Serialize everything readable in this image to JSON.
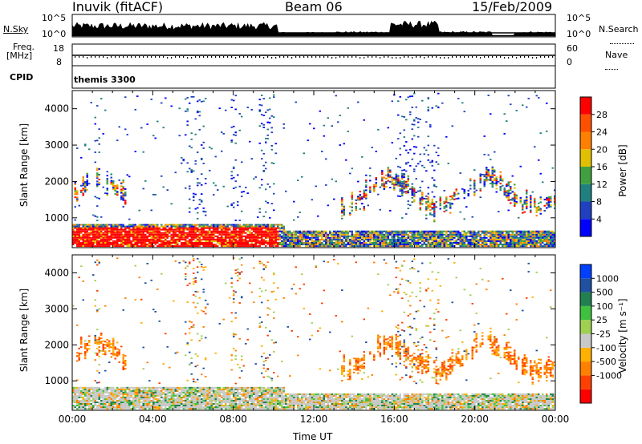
{
  "header": {
    "station": "Inuvik (fitACF)",
    "beam": "Beam 06",
    "date": "15/Feb/2009"
  },
  "panels": {
    "nsky_label": "N.Sky",
    "nsky_ticks": [
      "10^5",
      "10^0"
    ],
    "nsearch_label": "N.Search",
    "nsearch_ticks": [
      "10^5",
      "10^0"
    ],
    "freq_label": "Freq.",
    "freq_unit": "[MHz]",
    "freq_ticks": [
      "18",
      "8"
    ],
    "nave_label": "Nave",
    "nave_ticks": [
      "60",
      "0"
    ],
    "cpid_label": "CPID",
    "cpid_value": "themis 3300"
  },
  "colors": {
    "power_scale": [
      "#0000ff",
      "#2040c0",
      "#208080",
      "#40a040",
      "#e0c000",
      "#ff8000",
      "#ff5000",
      "#ff0000"
    ],
    "velocity_scale": [
      "#ff0000",
      "#ff4000",
      "#ff8000",
      "#ffb000",
      "#c8c8c8",
      "#a0d050",
      "#40c040",
      "#208050",
      "#2050a0",
      "#0040ff"
    ]
  },
  "chart_data": [
    {
      "type": "heatmap",
      "title": "",
      "xlabel": "Time UT",
      "ylabel": "Slant Range [km]",
      "x_ticks": [
        "00:00",
        "04:00",
        "08:00",
        "12:00",
        "16:00",
        "20:00",
        "00:00"
      ],
      "x_range_hours": [
        0,
        24
      ],
      "y_ticks": [
        1000,
        2000,
        3000,
        4000
      ],
      "ylim": [
        180,
        4500
      ],
      "colorbar": {
        "label": "Power [dB]",
        "ticks": [
          "4",
          "8",
          "12",
          "16",
          "20",
          "24",
          "28"
        ],
        "range": [
          0,
          30
        ]
      }
    },
    {
      "type": "heatmap",
      "title": "",
      "xlabel": "Time UT",
      "ylabel": "Slant Range [km]",
      "x_ticks": [
        "00:00",
        "04:00",
        "08:00",
        "12:00",
        "16:00",
        "20:00",
        "00:00"
      ],
      "x_range_hours": [
        0,
        24
      ],
      "y_ticks": [
        1000,
        2000,
        3000,
        4000
      ],
      "ylim": [
        180,
        4500
      ],
      "colorbar": {
        "label": "Velocity [m s⁻¹]",
        "ticks": [
          "1000",
          "500",
          "100",
          "25",
          "-25",
          "-100",
          "-500",
          "-1000"
        ],
        "range": [
          -1000,
          1000
        ]
      }
    }
  ]
}
